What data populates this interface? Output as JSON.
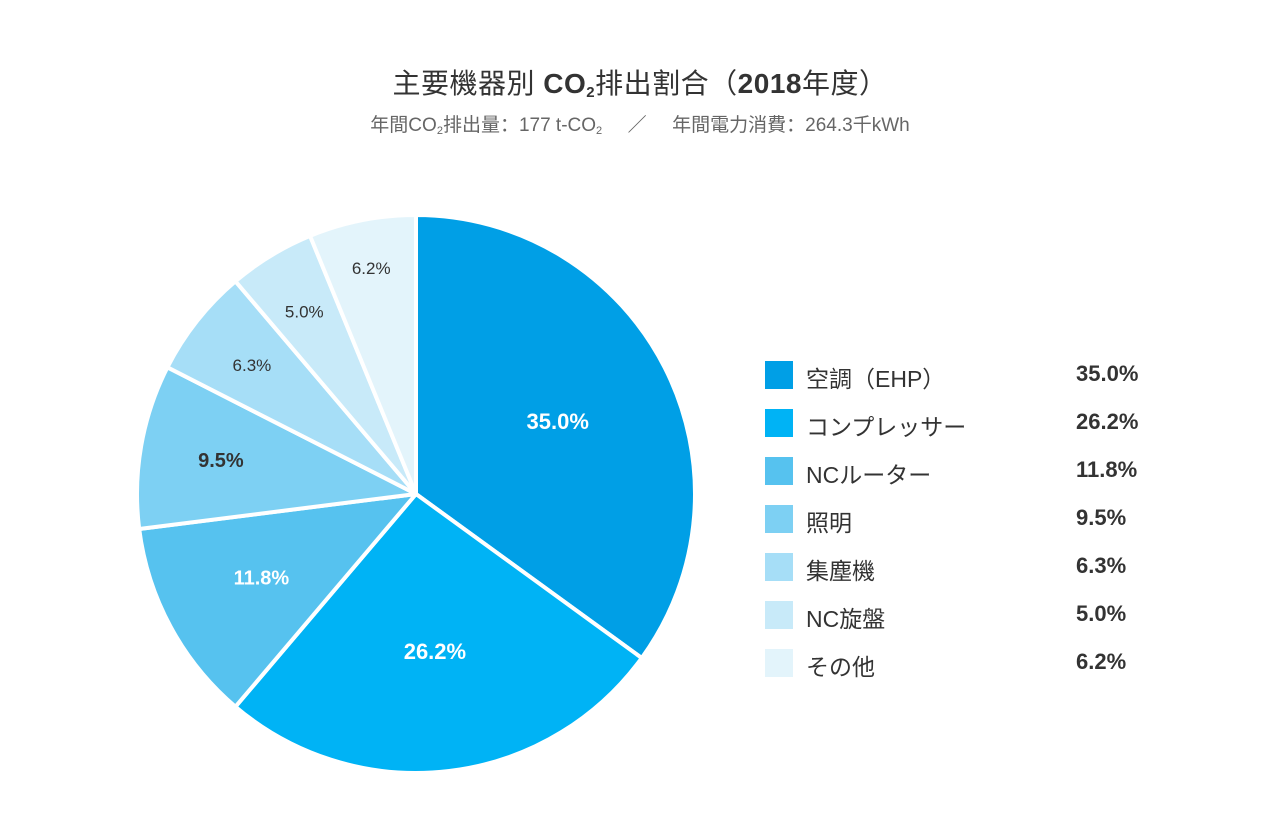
{
  "title": {
    "pre": "主要機器別 ",
    "co": "CO",
    "sub2": "2",
    "post": "排出割合",
    "year_open": "（",
    "year": "2018",
    "year_close": "年度）"
  },
  "subtitle": {
    "a": "年間CO",
    "a_sub": "2",
    "b": "排出量：177 t-CO",
    "b_sub": "2",
    "sep": "／",
    "c": "年間電力消費：264.3千kWh"
  },
  "chart_data": {
    "type": "pie",
    "slices": [
      {
        "name": "空調（EHP）",
        "value": 35.0,
        "label": "35.0%",
        "color": "#009fe6",
        "label_color": "#ffffff",
        "bold": true
      },
      {
        "name": "コンプレッサー",
        "value": 26.2,
        "label": "26.2%",
        "color": "#00b3f5",
        "label_color": "#ffffff",
        "bold": true
      },
      {
        "name": "NCルーター",
        "value": 11.8,
        "label": "11.8%",
        "color": "#56c2ef",
        "label_color": "#ffffff",
        "bold": true
      },
      {
        "name": "照明",
        "value": 9.5,
        "label": "9.5%",
        "color": "#7dd0f3",
        "label_color": "#333333",
        "bold": true
      },
      {
        "name": "集塵機",
        "value": 6.3,
        "label": "6.3%",
        "color": "#a6def7",
        "label_color": "#333333",
        "bold": false
      },
      {
        "name": "NC旋盤",
        "value": 5.0,
        "label": "5.0%",
        "color": "#c8eaf9",
        "label_color": "#333333",
        "bold": false
      },
      {
        "name": "その他",
        "value": 6.2,
        "label": "6.2%",
        "color": "#e3f4fb",
        "label_color": "#333333",
        "bold": false
      }
    ],
    "start": "12 o'clock",
    "direction": "clockwise",
    "legend_placement": "right"
  }
}
